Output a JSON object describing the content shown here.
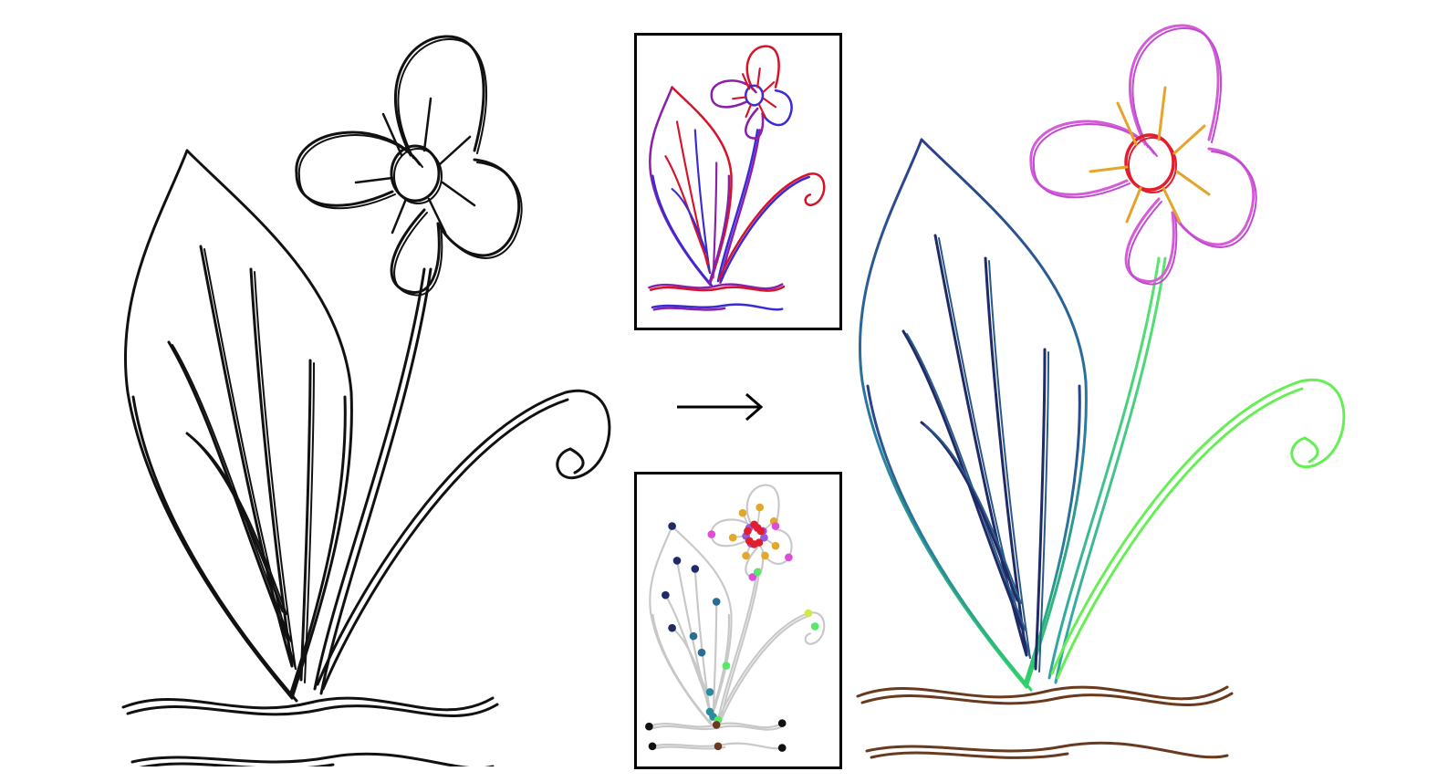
{
  "figure": {
    "arrow_glyph": "⟶",
    "colors": {
      "input_stroke": "#111111",
      "leaf_top": "#2c3e8a",
      "leaf_bottom": "#2fd36a",
      "leaf_vein": "#1f2a66",
      "stem": "#57e86a",
      "tendril": "#66ef55",
      "petal": "#d65bd8",
      "center": "#e11d2e",
      "stamen": "#e5a42a",
      "ground": "#6a3a1e",
      "reference_red": "#d4142a",
      "reference_blue": "#3a2bd6",
      "reference_purple": "#8a1fa8",
      "skeleton_gray": "#c8c8c8"
    },
    "keypoint_palette": [
      "#1f2a66",
      "#2c6b93",
      "#2a8a9e",
      "#57e86a",
      "#cfe84a",
      "#e3a82a",
      "#9a57d6",
      "#e11d2e",
      "#e04bd8",
      "#6a3a1e",
      "#111111"
    ]
  }
}
